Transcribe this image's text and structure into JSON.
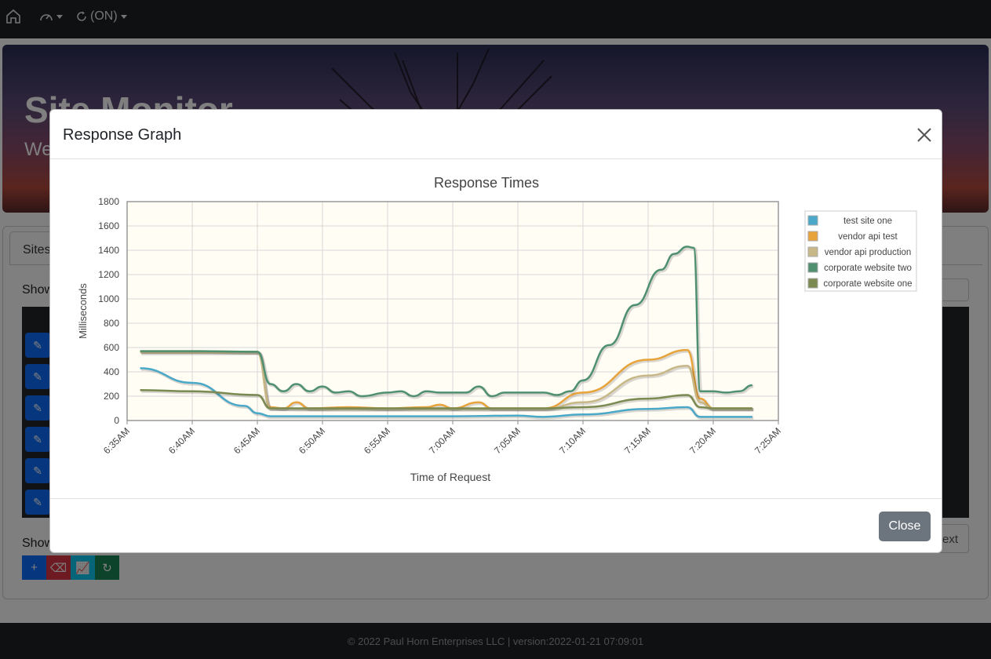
{
  "navbar": {
    "home_icon": "home-icon",
    "dashboard_icon": "gauge-icon",
    "refresh_label": "(ON)",
    "refresh_icon": "refresh-icon"
  },
  "hero": {
    "title": "Site Monitor",
    "subtitle": "We"
  },
  "panel": {
    "tab_label": "Sites",
    "show_top": "Show",
    "show_bottom": "Show",
    "next_label": "ext"
  },
  "toolbar": {
    "add_icon": "plus-icon",
    "clear_icon": "eraser-icon",
    "graph_icon": "chart-icon",
    "refresh_icon": "refresh-icon"
  },
  "footer": {
    "text": "© 2022 Paul Horn Enterprises LLC | version:2022-01-21 07:09:01"
  },
  "modal": {
    "title": "Response Graph",
    "close_label": "Close"
  },
  "colors": {
    "navbar": "#1f2023",
    "plot_background": "#fffdf4",
    "close_button": "#6c757d"
  },
  "chart_data": {
    "type": "line",
    "title": "Response Times",
    "xlabel": "Time of Request",
    "ylabel": "Milliseconds",
    "ylim": [
      0,
      1800
    ],
    "yticks": [
      0,
      200,
      400,
      600,
      800,
      1000,
      1200,
      1400,
      1600,
      1800
    ],
    "x_range_minutes": [
      "6:35",
      "7:25"
    ],
    "xticks": [
      "6:35AM",
      "6:40AM",
      "6:45AM",
      "6:50AM",
      "6:55AM",
      "7:00AM",
      "7:05AM",
      "7:10AM",
      "7:15AM",
      "7:20AM",
      "7:25AM"
    ],
    "grid": true,
    "legend_position": "top-right",
    "series": [
      {
        "name": "test site one",
        "color": "#4aa8c8",
        "points": [
          [
            "6:36",
            430
          ],
          [
            "6:40",
            310
          ],
          [
            "6:44",
            120
          ],
          [
            "6:45",
            60
          ],
          [
            "6:46",
            35
          ],
          [
            "6:50",
            35
          ],
          [
            "6:55",
            35
          ],
          [
            "7:00",
            35
          ],
          [
            "7:05",
            40
          ],
          [
            "7:07",
            30
          ],
          [
            "7:10",
            50
          ],
          [
            "7:15",
            95
          ],
          [
            "7:18",
            110
          ],
          [
            "7:19",
            30
          ],
          [
            "7:23",
            30
          ]
        ]
      },
      {
        "name": "vendor api test",
        "color": "#e8a33a",
        "points": [
          [
            "6:36",
            570
          ],
          [
            "6:40",
            570
          ],
          [
            "6:45",
            565
          ],
          [
            "6:46",
            110
          ],
          [
            "6:47",
            100
          ],
          [
            "6:48",
            150
          ],
          [
            "6:49",
            100
          ],
          [
            "6:52",
            110
          ],
          [
            "6:55",
            100
          ],
          [
            "6:58",
            110
          ],
          [
            "6:59",
            130
          ],
          [
            "7:00",
            100
          ],
          [
            "7:02",
            150
          ],
          [
            "7:03",
            100
          ],
          [
            "7:06",
            100
          ],
          [
            "7:07",
            100
          ],
          [
            "7:10",
            230
          ],
          [
            "7:15",
            500
          ],
          [
            "7:18",
            580
          ],
          [
            "7:19",
            180
          ],
          [
            "7:20",
            100
          ],
          [
            "7:23",
            100
          ]
        ]
      },
      {
        "name": "vendor api production",
        "color": "#c8b888",
        "points": [
          [
            "6:36",
            560
          ],
          [
            "6:40",
            560
          ],
          [
            "6:45",
            560
          ],
          [
            "6:46",
            100
          ],
          [
            "6:50",
            95
          ],
          [
            "6:55",
            95
          ],
          [
            "7:00",
            95
          ],
          [
            "7:05",
            95
          ],
          [
            "7:07",
            95
          ],
          [
            "7:10",
            150
          ],
          [
            "7:15",
            370
          ],
          [
            "7:18",
            450
          ],
          [
            "7:19",
            150
          ],
          [
            "7:20",
            95
          ],
          [
            "7:23",
            95
          ]
        ]
      },
      {
        "name": "corporate website two",
        "color": "#4e9070",
        "points": [
          [
            "6:36",
            570
          ],
          [
            "6:40",
            570
          ],
          [
            "6:45",
            565
          ],
          [
            "6:46",
            300
          ],
          [
            "6:47",
            240
          ],
          [
            "6:48",
            300
          ],
          [
            "6:49",
            240
          ],
          [
            "6:50",
            280
          ],
          [
            "6:51",
            230
          ],
          [
            "6:52",
            240
          ],
          [
            "6:53",
            200
          ],
          [
            "6:55",
            230
          ],
          [
            "6:56",
            240
          ],
          [
            "6:57",
            200
          ],
          [
            "6:58",
            240
          ],
          [
            "6:59",
            230
          ],
          [
            "7:00",
            230
          ],
          [
            "7:01",
            230
          ],
          [
            "7:02",
            280
          ],
          [
            "7:03",
            200
          ],
          [
            "7:04",
            230
          ],
          [
            "7:05",
            230
          ],
          [
            "7:06",
            230
          ],
          [
            "7:07",
            230
          ],
          [
            "7:08",
            210
          ],
          [
            "7:09",
            240
          ],
          [
            "7:10",
            330
          ],
          [
            "7:12",
            620
          ],
          [
            "7:14",
            950
          ],
          [
            "7:16",
            1240
          ],
          [
            "7:17",
            1370
          ],
          [
            "7:18",
            1430
          ],
          [
            "7:18.5",
            1420
          ],
          [
            "7:19",
            240
          ],
          [
            "7:20",
            240
          ],
          [
            "7:21",
            230
          ],
          [
            "7:22",
            240
          ],
          [
            "7:23",
            290
          ]
        ]
      },
      {
        "name": "corporate website one",
        "color": "#7a8a50",
        "points": [
          [
            "6:36",
            250
          ],
          [
            "6:40",
            240
          ],
          [
            "6:45",
            210
          ],
          [
            "6:46",
            100
          ],
          [
            "6:50",
            100
          ],
          [
            "6:55",
            100
          ],
          [
            "7:00",
            100
          ],
          [
            "7:05",
            100
          ],
          [
            "7:07",
            100
          ],
          [
            "7:10",
            110
          ],
          [
            "7:15",
            180
          ],
          [
            "7:18",
            210
          ],
          [
            "7:19",
            110
          ],
          [
            "7:20",
            100
          ],
          [
            "7:23",
            100
          ]
        ]
      }
    ]
  }
}
